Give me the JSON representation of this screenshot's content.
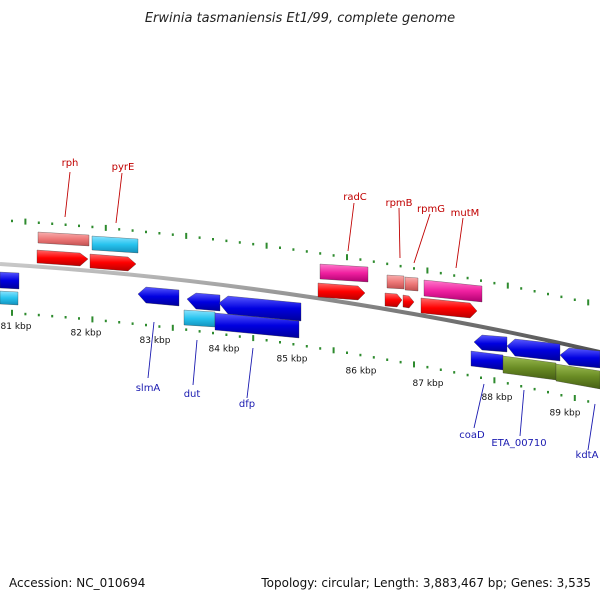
{
  "title": "Erwinia tasmaniensis Et1/99, complete genome",
  "footer": {
    "accession": "Accession: NC_010694",
    "summary": "Topology: circular; Length: 3,883,467 bp; Genes: 3,535"
  },
  "ticks": [
    "81 kbp",
    "82 kbp",
    "83 kbp",
    "84 kbp",
    "85 kbp",
    "86 kbp",
    "87 kbp",
    "88 kbp",
    "89 kbp"
  ],
  "labels": {
    "rph": "rph",
    "pyrE": "pyrE",
    "radC": "radC",
    "rpmB": "rpmB",
    "rpmG": "rpmG",
    "mutM": "mutM",
    "slmA": "slmA",
    "dut": "dut",
    "dfp": "dfp",
    "coaD": "coaD",
    "ETA_00710": "ETA_00710",
    "kdtA": "kdtA"
  },
  "colors": {
    "forward_cds": "#ff0000",
    "forward_gene": "#f07878",
    "reverse_cds": "#0000e0",
    "misc_cyan": "#27c3ee",
    "magenta": "#f020a0",
    "olive": "#6a8c24",
    "backbone": "#808080",
    "tick_green": "#2e8b2e",
    "label_red": "#c00000",
    "label_blue": "#1a1ab0"
  }
}
